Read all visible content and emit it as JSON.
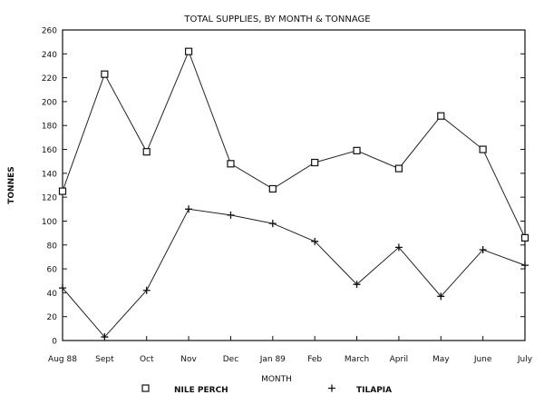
{
  "chart_data": {
    "type": "line",
    "title": "TOTAL SUPPLIES, BY MONTH & TONNAGE",
    "xlabel": "MONTH",
    "ylabel": "TONNES",
    "categories": [
      "Aug 88",
      "Sept",
      "Oct",
      "Nov",
      "Dec",
      "Jan 89",
      "Feb",
      "March",
      "April",
      "May",
      "June",
      "July"
    ],
    "ylim": [
      0,
      260
    ],
    "yticks": [
      0,
      20,
      40,
      60,
      80,
      100,
      120,
      140,
      160,
      180,
      200,
      220,
      240,
      260
    ],
    "grid": false,
    "legend_position": "bottom",
    "series": [
      {
        "name": "NILE PERCH",
        "marker": "square",
        "values": [
          125,
          223,
          158,
          242,
          148,
          127,
          149,
          159,
          144,
          188,
          160,
          86
        ]
      },
      {
        "name": "TILAPIA",
        "marker": "plus",
        "values": [
          44,
          3,
          42,
          110,
          105,
          98,
          83,
          47,
          78,
          37,
          76,
          63
        ]
      }
    ],
    "colors": {
      "line": "#222222",
      "axis": "#111111"
    }
  }
}
